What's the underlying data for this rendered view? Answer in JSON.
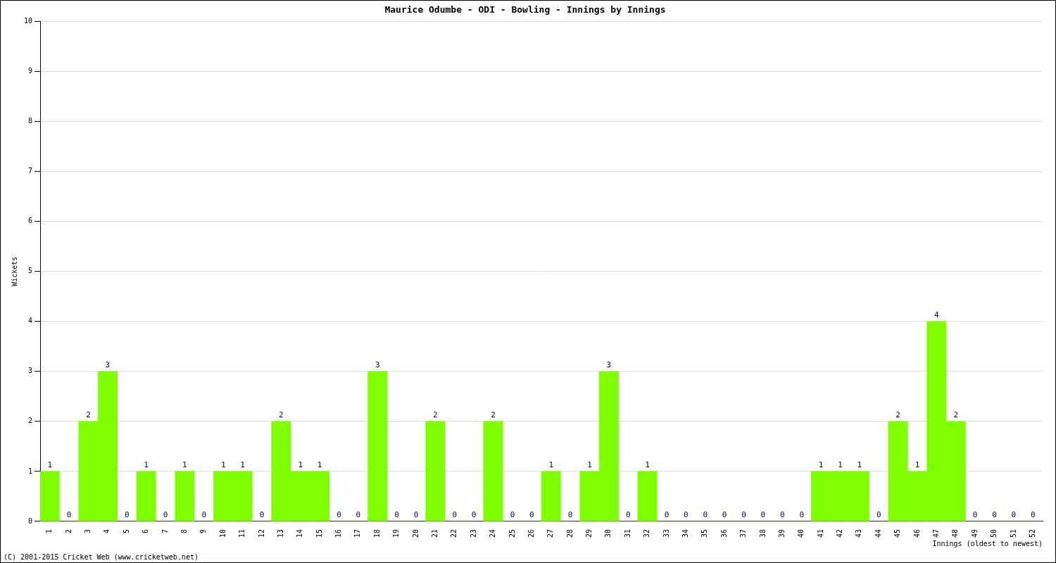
{
  "chart_data": {
    "type": "bar",
    "title": "Maurice Odumbe - ODI - Bowling - Innings by Innings",
    "x_label": "Innings (oldest to newest)",
    "y_label": "Wickets",
    "annotations": [
      "(C) 2001-2015 Cricket Web (www.cricketweb.net)"
    ],
    "categories": [
      "1",
      "2",
      "3",
      "4",
      "5",
      "6",
      "7",
      "8",
      "9",
      "10",
      "11",
      "12",
      "13",
      "14",
      "15",
      "16",
      "17",
      "18",
      "19",
      "20",
      "21",
      "22",
      "23",
      "24",
      "25",
      "26",
      "27",
      "28",
      "29",
      "30",
      "31",
      "32",
      "33",
      "34",
      "35",
      "36",
      "37",
      "38",
      "39",
      "40",
      "41",
      "42",
      "43",
      "44",
      "45",
      "46",
      "47",
      "48",
      "49",
      "50",
      "51",
      "52"
    ],
    "values": [
      1,
      0,
      2,
      3,
      0,
      1,
      0,
      1,
      0,
      1,
      1,
      0,
      2,
      1,
      1,
      0,
      0,
      3,
      0,
      0,
      2,
      0,
      0,
      2,
      0,
      0,
      1,
      0,
      1,
      3,
      0,
      1,
      0,
      0,
      0,
      0,
      0,
      0,
      0,
      0,
      1,
      1,
      1,
      0,
      2,
      1,
      4,
      2,
      0,
      0,
      0,
      0
    ],
    "color": "#80ff00",
    "ylim": [
      0,
      10
    ],
    "yticks": [
      0,
      1,
      2,
      3,
      4,
      5,
      6,
      7,
      8,
      9,
      10
    ],
    "grid": true,
    "data_labels": true
  }
}
